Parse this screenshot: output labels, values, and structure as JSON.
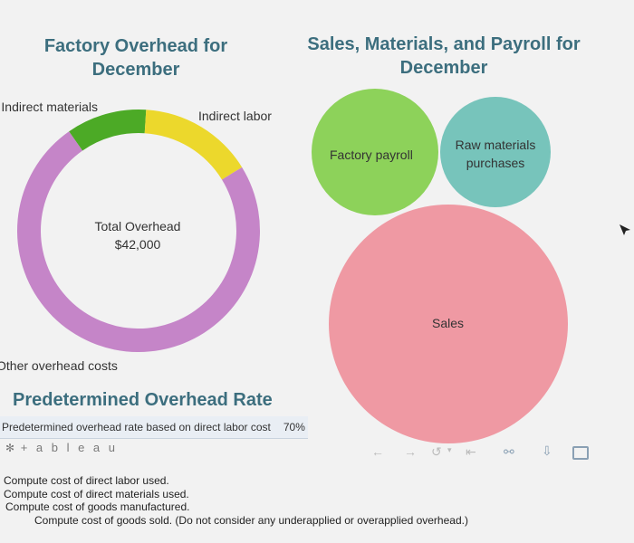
{
  "left_chart_title": "Factory Overhead for December",
  "right_chart_title": "Sales, Materials, and Payroll for December",
  "rate_section_title": "Predetermined Overhead Rate",
  "rate_row": {
    "label": "Predetermined overhead rate based on direct labor cost",
    "value": "70%"
  },
  "tableau_logo": "+ a b l e a u",
  "colors": {
    "title": "#3c6e7e",
    "indirect_materials": "#4caa26",
    "indirect_labor": "#ecd82c",
    "other_overhead": "#c585c8",
    "factory_payroll": "#8dd25a",
    "raw_materials": "#77c4bb",
    "sales": "#ef99a3"
  },
  "chart_data": [
    {
      "type": "pie",
      "variant": "donut",
      "title": "Factory Overhead for December",
      "center_label": [
        "Total Overhead",
        "$42,000"
      ],
      "slices": [
        {
          "label": "Indirect materials",
          "value": 4.5,
          "color": "#4caa26"
        },
        {
          "label": "Indirect labor",
          "value": 6.4,
          "color": "#ecd82c"
        },
        {
          "label": "Other overhead costs",
          "value": 31.1,
          "color": "#c585c8"
        }
      ]
    },
    {
      "type": "bubble",
      "title": "Sales, Materials, and Payroll for December",
      "bubbles": [
        {
          "label": "Factory payroll",
          "size": 0.26,
          "color": "#8dd25a"
        },
        {
          "label": "Raw materials purchases",
          "size": 0.21,
          "color": "#77c4bb"
        },
        {
          "label": "Sales",
          "size": 1.0,
          "color": "#ef99a3"
        }
      ]
    }
  ],
  "toolbar": {
    "undo_icon": "undo-arrow-icon",
    "redo_icon": "redo-arrow-icon",
    "revert_icon": "revert-icon",
    "share_icon": "share-icon",
    "download_icon": "download-icon",
    "fullscreen_icon": "fullscreen-icon"
  },
  "questions": [
    "Compute cost of direct labor used.",
    "Compute cost of direct materials used.",
    "Compute cost of goods manufactured.",
    "Compute cost of goods sold. (Do not consider any underapplied or overapplied overhead.)"
  ]
}
